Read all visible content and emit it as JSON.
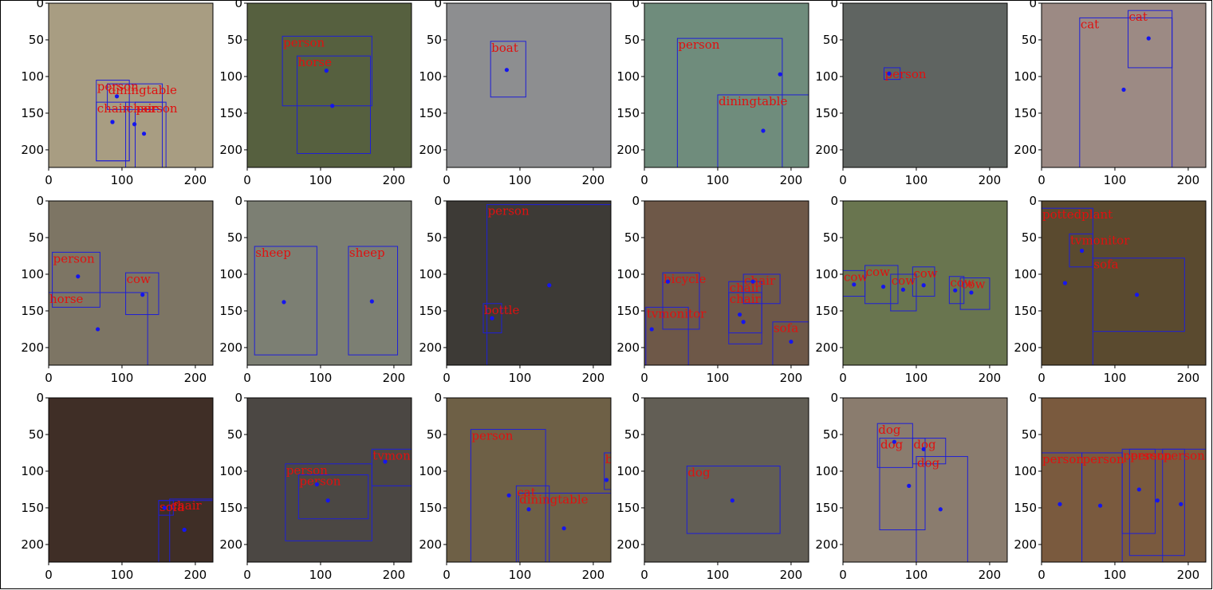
{
  "colors": {
    "box": "#1f1fd6",
    "label": "#e01010",
    "center": "#1515ee",
    "axis": "#000000",
    "frame_border": "#000000"
  },
  "chart_data": {
    "type": "detections-grid",
    "rows": 3,
    "cols": 6,
    "xlim": [
      0,
      224
    ],
    "ylim": [
      224,
      0
    ],
    "xticks": [
      0,
      100,
      200
    ],
    "yticks": [
      0,
      50,
      100,
      150,
      200
    ],
    "panels": [
      {
        "bg": "#a89d82",
        "detections": [
          {
            "label": "person",
            "box": [
              65,
              105,
              110,
              215
            ],
            "center": [
              87,
              162
            ]
          },
          {
            "label": "chair",
            "box": [
              65,
              135,
              110,
              215
            ],
            "center": [
              87,
              162
            ]
          },
          {
            "label": "diningtable",
            "box": [
              80,
              110,
              155,
              145
            ],
            "center": [
              93,
              127
            ]
          },
          {
            "label": "chair",
            "box": [
              105,
              135,
              155,
              225
            ],
            "center": [
              130,
              178
            ]
          },
          {
            "label": "person",
            "box": [
              118,
              135,
              160,
              225
            ],
            "center": [
              117,
              165
            ]
          }
        ]
      },
      {
        "bg": "#56603f",
        "detections": [
          {
            "label": "person",
            "box": [
              48,
              45,
              170,
              140
            ],
            "center": [
              108,
              92
            ]
          },
          {
            "label": "horse",
            "box": [
              68,
              72,
              168,
              205
            ],
            "center": [
              116,
              140
            ]
          }
        ]
      },
      {
        "bg": "#8d8e90",
        "detections": [
          {
            "label": "boat",
            "box": [
              60,
              52,
              108,
              128
            ],
            "center": [
              82,
              91
            ]
          }
        ]
      },
      {
        "bg": "#6f8c7c",
        "detections": [
          {
            "label": "person",
            "box": [
              45,
              48,
              188,
              225
            ],
            "center": [
              185,
              97
            ]
          },
          {
            "label": "diningtable",
            "box": [
              100,
              125,
              225,
              225
            ],
            "center": [
              162,
              174
            ]
          }
        ]
      },
      {
        "bg": "#5f6461",
        "detections": [
          {
            "label": "person",
            "box": [
              56,
              88,
              78,
              104
            ],
            "center": [
              63,
              96
            ]
          }
        ]
      },
      {
        "bg": "#9c8a84",
        "detections": [
          {
            "label": "cat",
            "box": [
              52,
              20,
              178,
              225
            ],
            "center": [
              112,
              118
            ]
          },
          {
            "label": "cat",
            "box": [
              118,
              10,
              178,
              88
            ],
            "center": [
              146,
              48
            ]
          }
        ]
      },
      {
        "bg": "#7d7564",
        "detections": [
          {
            "label": "person",
            "box": [
              5,
              70,
              70,
              145
            ],
            "center": [
              40,
              103
            ]
          },
          {
            "label": "cow",
            "box": [
              105,
              98,
              150,
              155
            ],
            "center": [
              128,
              128
            ]
          },
          {
            "label": "horse",
            "box": [
              0,
              125,
              135,
              225
            ],
            "center": [
              67,
              175
            ]
          }
        ]
      },
      {
        "bg": "#7c7f73",
        "detections": [
          {
            "label": "sheep",
            "box": [
              10,
              62,
              95,
              210
            ],
            "center": [
              50,
              138
            ]
          },
          {
            "label": "sheep",
            "box": [
              138,
              62,
              205,
              210
            ],
            "center": [
              170,
              137
            ]
          }
        ]
      },
      {
        "bg": "#3d3a36",
        "detections": [
          {
            "label": "person",
            "box": [
              55,
              5,
              225,
              225
            ],
            "center": [
              140,
              115
            ]
          },
          {
            "label": "bottle",
            "box": [
              50,
              140,
              75,
              180
            ],
            "center": [
              62,
              160
            ]
          }
        ]
      },
      {
        "bg": "#6e5848",
        "detections": [
          {
            "label": "bicycle",
            "box": [
              25,
              98,
              75,
              175
            ],
            "center": [
              32,
              110
            ]
          },
          {
            "label": "chair",
            "box": [
              115,
              110,
              160,
              180
            ],
            "center": [
              130,
              155
            ]
          },
          {
            "label": "chair",
            "box": [
              115,
              125,
              160,
              195
            ],
            "center": [
              135,
              165
            ]
          },
          {
            "label": "chair",
            "box": [
              135,
              100,
              185,
              140
            ],
            "center": [
              148,
              110
            ]
          },
          {
            "label": "tvmonitor",
            "box": [
              2,
              145,
              60,
              225
            ],
            "center": [
              10,
              175
            ]
          },
          {
            "label": "sofa",
            "box": [
              175,
              165,
              225,
              225
            ],
            "center": [
              200,
              192
            ]
          }
        ]
      },
      {
        "bg": "#69754f",
        "detections": [
          {
            "label": "cow",
            "box": [
              0,
              95,
              30,
              130
            ],
            "center": [
              15,
              114
            ]
          },
          {
            "label": "cow",
            "box": [
              30,
              88,
              75,
              140
            ],
            "center": [
              55,
              117
            ]
          },
          {
            "label": "cow",
            "box": [
              65,
              100,
              100,
              150
            ],
            "center": [
              82,
              121
            ]
          },
          {
            "label": "cow",
            "box": [
              95,
              90,
              125,
              130
            ],
            "center": [
              110,
              115
            ]
          },
          {
            "label": "cow",
            "box": [
              145,
              103,
              165,
              140
            ],
            "center": [
              153,
              122
            ]
          },
          {
            "label": "cow",
            "box": [
              160,
              105,
              200,
              148
            ],
            "center": [
              175,
              125
            ]
          }
        ]
      },
      {
        "bg": "#5a4a2f",
        "detections": [
          {
            "label": "pottedplant",
            "box": [
              0,
              10,
              70,
              225
            ],
            "center": [
              32,
              112
            ]
          },
          {
            "label": "tvmonitor",
            "box": [
              38,
              45,
              70,
              90
            ],
            "center": [
              55,
              68
            ]
          },
          {
            "label": "sofa",
            "box": [
              70,
              78,
              195,
              178
            ],
            "center": [
              130,
              128
            ]
          }
        ]
      },
      {
        "bg": "#3f2e26",
        "detections": [
          {
            "label": "sofa",
            "box": [
              150,
              140,
              225,
              225
            ],
            "center": [
              185,
              180
            ]
          },
          {
            "label": "sofa",
            "box": [
              150,
              140,
              170,
              160
            ],
            "center": [
              158,
              150
            ]
          },
          {
            "label": "chair",
            "box": [
              165,
              138,
              225,
              225
            ],
            "center": [
              185,
              180
            ]
          }
        ]
      },
      {
        "bg": "#4b4743",
        "detections": [
          {
            "label": "tvmonitor",
            "box": [
              170,
              70,
              225,
              120
            ],
            "center": [
              188,
              87
            ]
          },
          {
            "label": "person",
            "box": [
              52,
              90,
              170,
              195
            ],
            "center": [
              95,
              118
            ]
          },
          {
            "label": "person",
            "box": [
              70,
              105,
              165,
              165
            ],
            "center": [
              110,
              140
            ]
          }
        ]
      },
      {
        "bg": "#6e6046",
        "detections": [
          {
            "label": "person",
            "box": [
              33,
              43,
              135,
              225
            ],
            "center": [
              85,
              133
            ]
          },
          {
            "label": "cat",
            "box": [
              95,
              120,
              140,
              225
            ],
            "center": [
              112,
              152
            ]
          },
          {
            "label": "diningtable",
            "box": [
              98,
              130,
              225,
              225
            ],
            "center": [
              160,
              178
            ]
          },
          {
            "label": "bottle",
            "box": [
              215,
              75,
              225,
              125
            ],
            "center": [
              218,
              112
            ]
          }
        ]
      },
      {
        "bg": "#625e55",
        "detections": [
          {
            "label": "dog",
            "box": [
              58,
              93,
              185,
              185
            ],
            "center": [
              120,
              140
            ]
          }
        ]
      },
      {
        "bg": "#8a7c6e",
        "detections": [
          {
            "label": "dog",
            "box": [
              47,
              35,
              95,
              95
            ],
            "center": [
              70,
              60
            ]
          },
          {
            "label": "dog",
            "box": [
              50,
              55,
              112,
              180
            ],
            "center": [
              90,
              120
            ]
          },
          {
            "label": "dog",
            "box": [
              100,
              80,
              170,
              225
            ],
            "center": [
              133,
              152
            ]
          },
          {
            "label": "dog",
            "box": [
              95,
              55,
              140,
              90
            ],
            "center": [
              110,
              70
            ]
          }
        ]
      },
      {
        "bg": "#7a5a3e",
        "detections": [
          {
            "label": "person",
            "box": [
              0,
              75,
              55,
              225
            ],
            "center": [
              25,
              145
            ]
          },
          {
            "label": "person",
            "box": [
              55,
              75,
              110,
              225
            ],
            "center": [
              80,
              147
            ]
          },
          {
            "label": "person",
            "box": [
              110,
              70,
              155,
              185
            ],
            "center": [
              133,
              125
            ]
          },
          {
            "label": "person",
            "box": [
              120,
              70,
              195,
              215
            ],
            "center": [
              158,
              140
            ]
          },
          {
            "label": "person",
            "box": [
              165,
              70,
              225,
              225
            ],
            "center": [
              190,
              145
            ]
          }
        ]
      }
    ]
  }
}
